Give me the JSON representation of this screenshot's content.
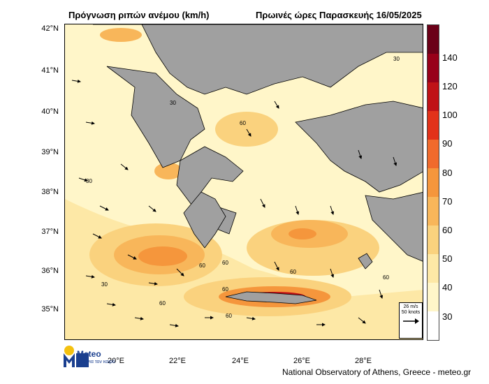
{
  "title": "Πρόγνωση ριπών ανέμου (km/h)",
  "subtitle": "Πρωινές ώρες Παρασκευής 16/05/2025",
  "lat_labels": [
    "42°N",
    "41°N",
    "40°N",
    "39°N",
    "38°N",
    "37°N",
    "36°N",
    "35°N"
  ],
  "lon_labels": [
    "20°E",
    "22°E",
    "24°E",
    "26°E",
    "28°E"
  ],
  "colorbar": {
    "labels": [
      "140",
      "120",
      "100",
      "90",
      "80",
      "70",
      "60",
      "50",
      "40",
      "30"
    ],
    "colors": [
      "#6b0018",
      "#98001a",
      "#c01217",
      "#e2321a",
      "#f06a2c",
      "#f5963c",
      "#f8b65a",
      "#fad27e",
      "#fde8a6",
      "#fff6c9",
      "#ffffff"
    ]
  },
  "reference_vector": {
    "speed": "26 m/s",
    "knots": "50 knots"
  },
  "contour_labels": [
    "30",
    "60"
  ],
  "logo": {
    "name": "Meteo",
    "tagline": "Όλα για τον καιρό"
  },
  "footer": "National Observatory of Athens, Greece - meteo.gr"
}
